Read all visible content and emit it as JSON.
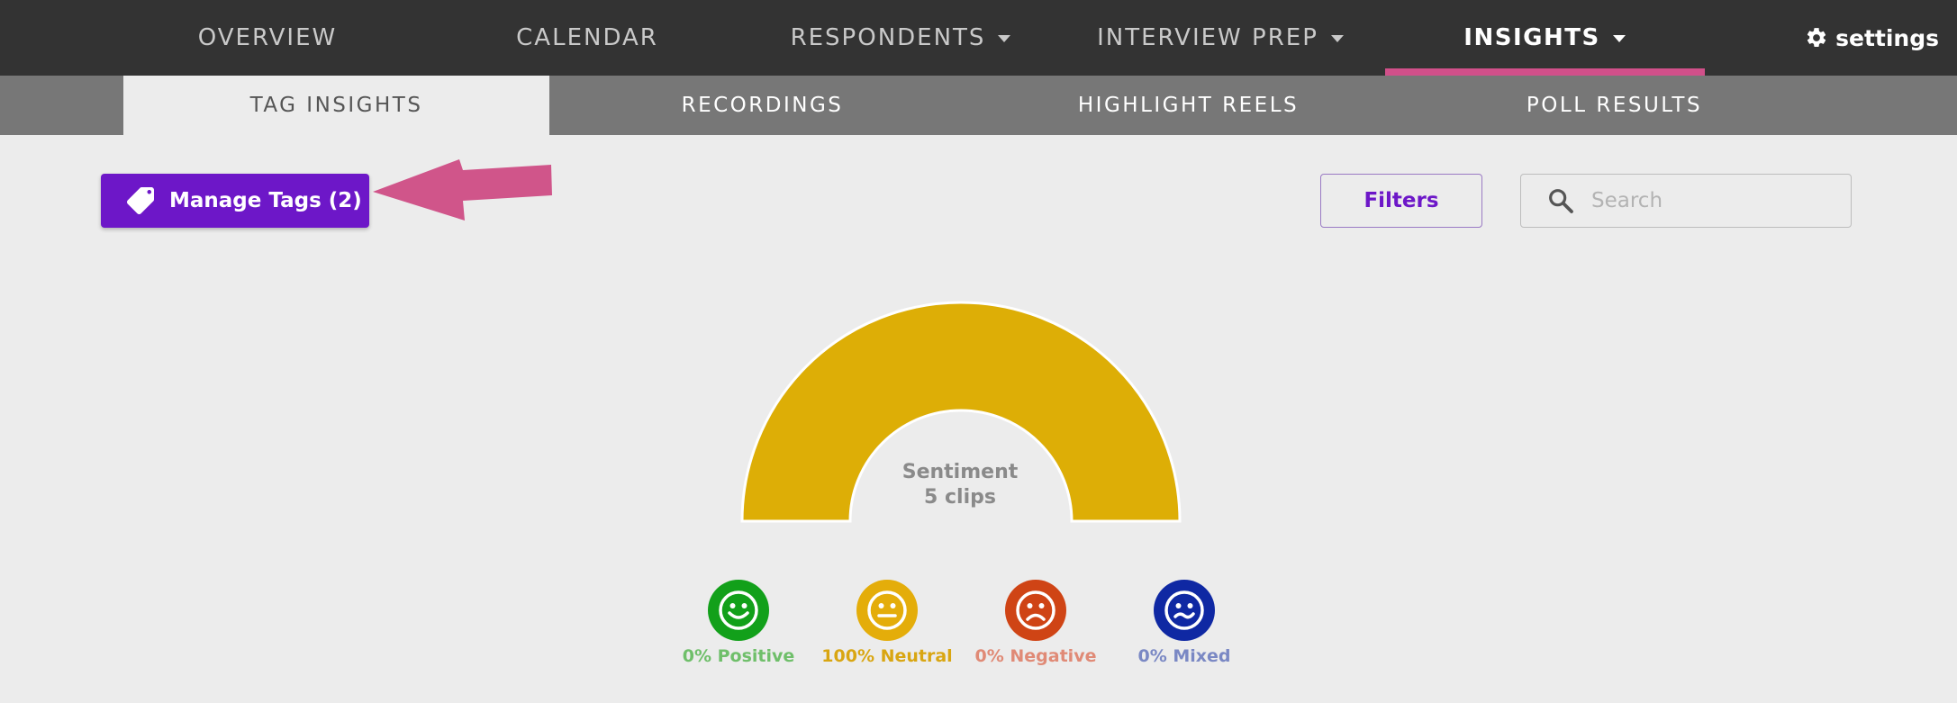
{
  "topnav": {
    "items": [
      {
        "label": "OVERVIEW"
      },
      {
        "label": "CALENDAR"
      },
      {
        "label": "RESPONDENTS"
      },
      {
        "label": "INTERVIEW PREP"
      },
      {
        "label": "INSIGHTS"
      }
    ],
    "settings_label": "settings",
    "accent_color": "#d1508a"
  },
  "subnav": {
    "tabs": [
      {
        "label": "TAG INSIGHTS"
      },
      {
        "label": "RECORDINGS"
      },
      {
        "label": "HIGHLIGHT REELS"
      },
      {
        "label": "POLL RESULTS"
      }
    ]
  },
  "toolbar": {
    "manage_tags_label": "Manage Tags (2)",
    "filters_label": "Filters",
    "search_placeholder": "Search",
    "brand_color": "#6d17c8"
  },
  "gauge": {
    "title": "Sentiment",
    "subtitle": "5 clips",
    "color": "#ddae06"
  },
  "sentiments": [
    {
      "label": "0% Positive",
      "color": "#12a01a",
      "text_color": "#6fbf6a",
      "icon": "smile-icon"
    },
    {
      "label": "100% Neutral",
      "color": "#e4ad0a",
      "text_color": "#d9a612",
      "icon": "neutral-face-icon"
    },
    {
      "label": "0% Negative",
      "color": "#cf4415",
      "text_color": "#e08a76",
      "icon": "frown-icon"
    },
    {
      "label": "0% Mixed",
      "color": "#0f28a3",
      "text_color": "#7a88c4",
      "icon": "mixed-face-icon"
    }
  ]
}
